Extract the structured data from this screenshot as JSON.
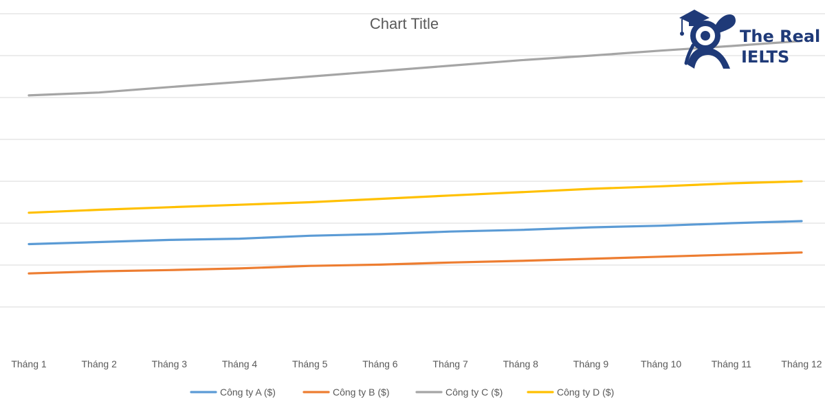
{
  "chart_data": {
    "type": "line",
    "title": "Chart Title",
    "categories": [
      "Tháng 1",
      "Tháng 2",
      "Tháng 3",
      "Tháng 4",
      "Tháng 5",
      "Tháng 6",
      "Tháng 7",
      "Tháng 8",
      "Tháng 9",
      "Tháng 10",
      "Tháng 11",
      "Tháng 12"
    ],
    "ylim": [
      0,
      8000
    ],
    "y_gridline_step": 1000,
    "y_tick_labels_visible": false,
    "grid": true,
    "legend_position": "bottom",
    "series": [
      {
        "name": "Công ty A ($)",
        "color": "#5b9bd5",
        "values": [
          2500,
          2550,
          2600,
          2630,
          2700,
          2740,
          2800,
          2840,
          2900,
          2940,
          3000,
          3050
        ]
      },
      {
        "name": "Công ty B ($)",
        "color": "#ed7d31",
        "values": [
          1800,
          1850,
          1880,
          1920,
          1980,
          2010,
          2060,
          2100,
          2150,
          2200,
          2250,
          2300
        ]
      },
      {
        "name": "Công ty C ($)",
        "color": "#a5a5a5",
        "values": [
          6050,
          6120,
          6250,
          6370,
          6500,
          6630,
          6760,
          6890,
          7000,
          7120,
          7230,
          7350
        ]
      },
      {
        "name": "Công ty D ($)",
        "color": "#ffc000",
        "values": [
          3250,
          3320,
          3380,
          3440,
          3500,
          3580,
          3660,
          3740,
          3820,
          3880,
          3950,
          4000
        ]
      }
    ]
  },
  "logo": {
    "line1": "The Real",
    "line2": "IELTS",
    "color": "#1f3a78",
    "icon_name": "graduation-owl-logo-icon"
  }
}
